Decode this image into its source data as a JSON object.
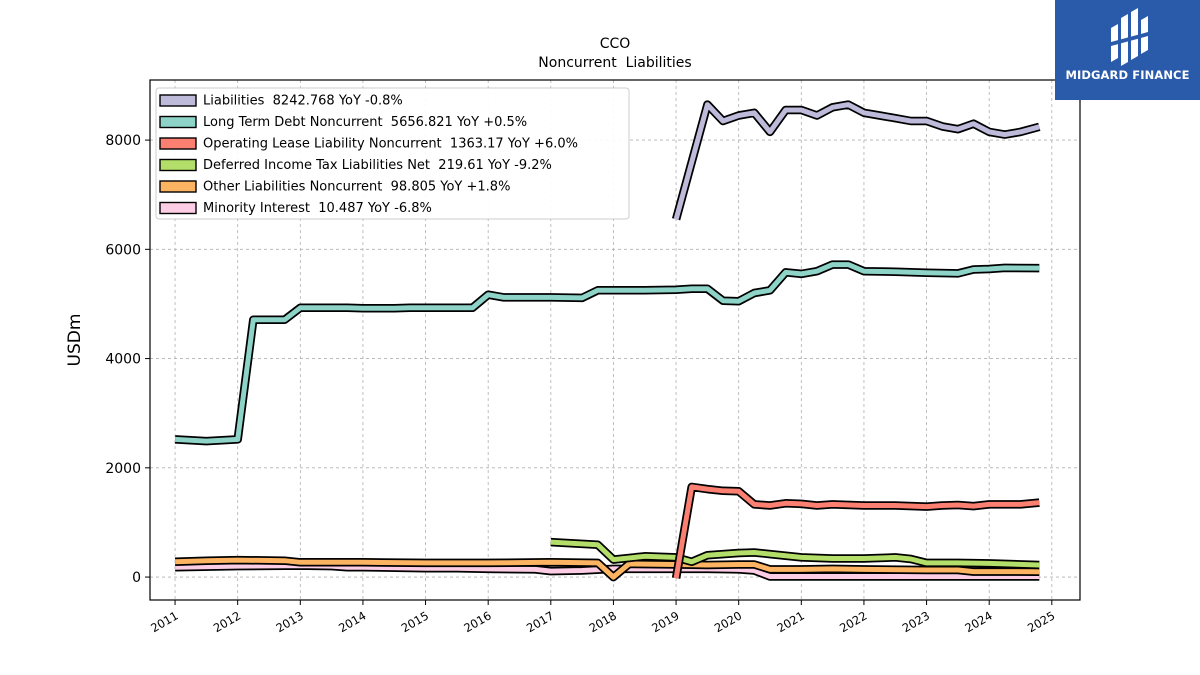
{
  "brand": {
    "name": "MIDGARD FINANCE",
    "logo_color": "#2a5bab"
  },
  "chart_data": {
    "type": "line",
    "title": "CCO",
    "subtitle": "Noncurrent  Liabilities",
    "ylabel": "USDm",
    "xlabel": "",
    "xlim": [
      2010.6,
      2025.45
    ],
    "ylim": [
      -420,
      9100
    ],
    "yticks": [
      0,
      2000,
      4000,
      6000,
      8000
    ],
    "ytick_labels": [
      "0",
      "2000",
      "4000",
      "6000",
      "8000"
    ],
    "xticks": [
      2011,
      2012,
      2013,
      2014,
      2015,
      2016,
      2017,
      2018,
      2019,
      2020,
      2021,
      2022,
      2023,
      2024,
      2025
    ],
    "xtick_labels": [
      "2011",
      "2012",
      "2013",
      "2014",
      "2015",
      "2016",
      "2017",
      "2018",
      "2019",
      "2020",
      "2021",
      "2022",
      "2023",
      "2024",
      "2025"
    ],
    "grid": true,
    "legend_position": "top-left",
    "series": [
      {
        "name": "Liabilities",
        "legend": "Liabilities  8242.768 YoY -0.8%",
        "color": "#bebada",
        "x": [
          2019.0,
          2019.5,
          2019.75,
          2020.0,
          2020.25,
          2020.5,
          2020.75,
          2021.0,
          2021.25,
          2021.5,
          2021.75,
          2022.0,
          2022.25,
          2022.5,
          2022.75,
          2023.0,
          2023.25,
          2023.5,
          2023.75,
          2024.0,
          2024.25,
          2024.5,
          2024.8
        ],
        "y": [
          6550,
          8650,
          8350,
          8450,
          8500,
          8150,
          8550,
          8550,
          8450,
          8600,
          8650,
          8500,
          8450,
          8400,
          8350,
          8350,
          8250,
          8200,
          8300,
          8150,
          8100,
          8150,
          8243
        ]
      },
      {
        "name": "Long Term Debt Noncurrent",
        "legend": "Long Term Debt Noncurrent  5656.821 YoY +0.5%",
        "color": "#8dd3c7",
        "x": [
          2011.0,
          2011.5,
          2012.0,
          2012.25,
          2012.75,
          2013.0,
          2013.75,
          2014.0,
          2014.5,
          2014.75,
          2015.0,
          2015.5,
          2015.75,
          2016.0,
          2016.25,
          2016.75,
          2017.0,
          2017.5,
          2017.75,
          2018.0,
          2018.5,
          2019.0,
          2019.25,
          2019.5,
          2019.75,
          2020.0,
          2020.25,
          2020.5,
          2020.75,
          2021.0,
          2021.25,
          2021.5,
          2021.75,
          2022.0,
          2022.5,
          2023.0,
          2023.5,
          2023.75,
          2024.0,
          2024.25,
          2024.8
        ],
        "y": [
          2520,
          2490,
          2520,
          4710,
          4710,
          4930,
          4930,
          4920,
          4920,
          4930,
          4930,
          4930,
          4930,
          5170,
          5120,
          5120,
          5120,
          5110,
          5250,
          5250,
          5250,
          5260,
          5280,
          5280,
          5060,
          5050,
          5200,
          5250,
          5580,
          5550,
          5600,
          5720,
          5720,
          5600,
          5590,
          5570,
          5560,
          5630,
          5640,
          5660,
          5657
        ]
      },
      {
        "name": "Operating Lease Liability Noncurrent",
        "legend": "Operating Lease Liability Noncurrent  1363.17 YoY +6.0%",
        "color": "#fb8072",
        "x": [
          2019.0,
          2019.25,
          2019.5,
          2019.75,
          2020.0,
          2020.25,
          2020.5,
          2020.75,
          2021.0,
          2021.25,
          2021.5,
          2022.0,
          2022.5,
          2023.0,
          2023.25,
          2023.5,
          2023.75,
          2024.0,
          2024.5,
          2024.8
        ],
        "y": [
          -20,
          1650,
          1610,
          1580,
          1570,
          1330,
          1310,
          1350,
          1340,
          1310,
          1330,
          1310,
          1310,
          1290,
          1310,
          1320,
          1300,
          1330,
          1330,
          1363
        ]
      },
      {
        "name": "Deferred Income Tax Liabilities Net",
        "legend": "Deferred Income Tax Liabilities Net  219.61 YoY -9.2%",
        "color": "#b3de69",
        "x": [
          2017.0,
          2017.75,
          2018.0,
          2018.5,
          2019.0,
          2019.25,
          2019.5,
          2020.0,
          2020.25,
          2020.5,
          2021.0,
          2021.5,
          2022.0,
          2022.5,
          2022.75,
          2023.0,
          2023.5,
          2024.0,
          2024.8
        ],
        "y": [
          640,
          590,
          320,
          380,
          360,
          280,
          400,
          440,
          450,
          420,
          360,
          340,
          340,
          360,
          330,
          260,
          260,
          250,
          220
        ]
      },
      {
        "name": "Other Liabilities Noncurrent",
        "legend": "Other Liabilities Noncurrent  98.805 YoY +1.8%",
        "color": "#fdb462",
        "x": [
          2011.0,
          2011.5,
          2012.0,
          2012.75,
          2013.0,
          2014.0,
          2015.0,
          2016.0,
          2017.0,
          2017.75,
          2018.0,
          2018.25,
          2019.0,
          2019.5,
          2020.0,
          2020.25,
          2020.5,
          2021.0,
          2021.5,
          2022.0,
          2023.0,
          2023.5,
          2023.75,
          2024.0,
          2024.8
        ],
        "y": [
          280,
          300,
          310,
          300,
          270,
          270,
          260,
          260,
          270,
          260,
          0,
          240,
          230,
          220,
          230,
          230,
          140,
          140,
          150,
          140,
          130,
          130,
          100,
          100,
          99
        ]
      },
      {
        "name": "Minority Interest",
        "legend": "Minority Interest  10.487 YoY -6.8%",
        "color": "#fccde5",
        "x": [
          2011.0,
          2012.0,
          2013.0,
          2013.5,
          2013.75,
          2014.0,
          2015.0,
          2015.5,
          2016.0,
          2016.75,
          2017.0,
          2017.5,
          2018.0,
          2019.0,
          2019.5,
          2020.0,
          2020.25,
          2020.5,
          2021.0,
          2022.0,
          2023.0,
          2024.0,
          2024.8
        ],
        "y": [
          180,
          200,
          210,
          200,
          180,
          180,
          160,
          160,
          150,
          140,
          110,
          120,
          150,
          150,
          150,
          140,
          120,
          10,
          10,
          10,
          10,
          10,
          10
        ]
      }
    ]
  }
}
